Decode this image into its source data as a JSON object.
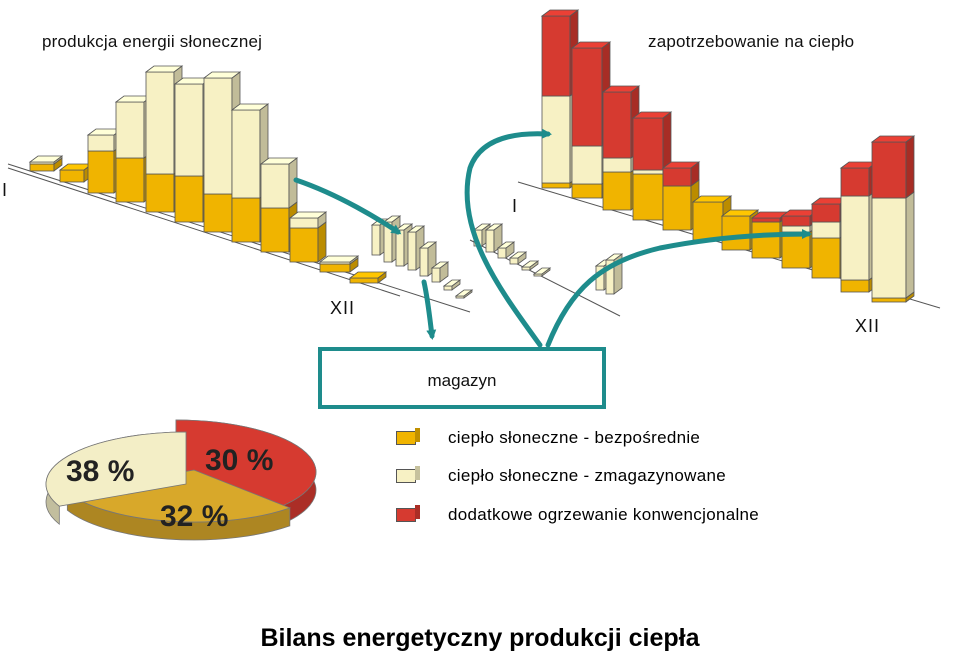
{
  "titles": {
    "solar_production": "produkcja energii słonecznej",
    "heat_demand": "zapotrzebowanie na ciepło"
  },
  "axes": {
    "left_start": "I",
    "left_end": "XII",
    "right_start": "I",
    "right_end": "XII"
  },
  "storage": {
    "label": "magazyn"
  },
  "legend": [
    {
      "label": "ciepło słoneczne - bezpośrednie",
      "color": "#f0b400"
    },
    {
      "label": "ciepło słoneczne - zmagazynowane",
      "color": "#f7f1c4"
    },
    {
      "label": "dodatkowe ogrzewanie konwencjonalne",
      "color": "#d63a30"
    }
  ],
  "pie": [
    {
      "label": "38 %",
      "value": 38,
      "color": "#d63a30"
    },
    {
      "label": "30 %",
      "value": 30,
      "color": "#d8a82a"
    },
    {
      "label": "32 %",
      "value": 32,
      "color": "#f3eec6"
    }
  ],
  "colors": {
    "teal": "#1e8c8c",
    "direct": "#f0b400",
    "stored": "#f7f1c4",
    "conventional": "#d63a30"
  },
  "caption": "Bilans energetyczny produkcji ciepła"
}
